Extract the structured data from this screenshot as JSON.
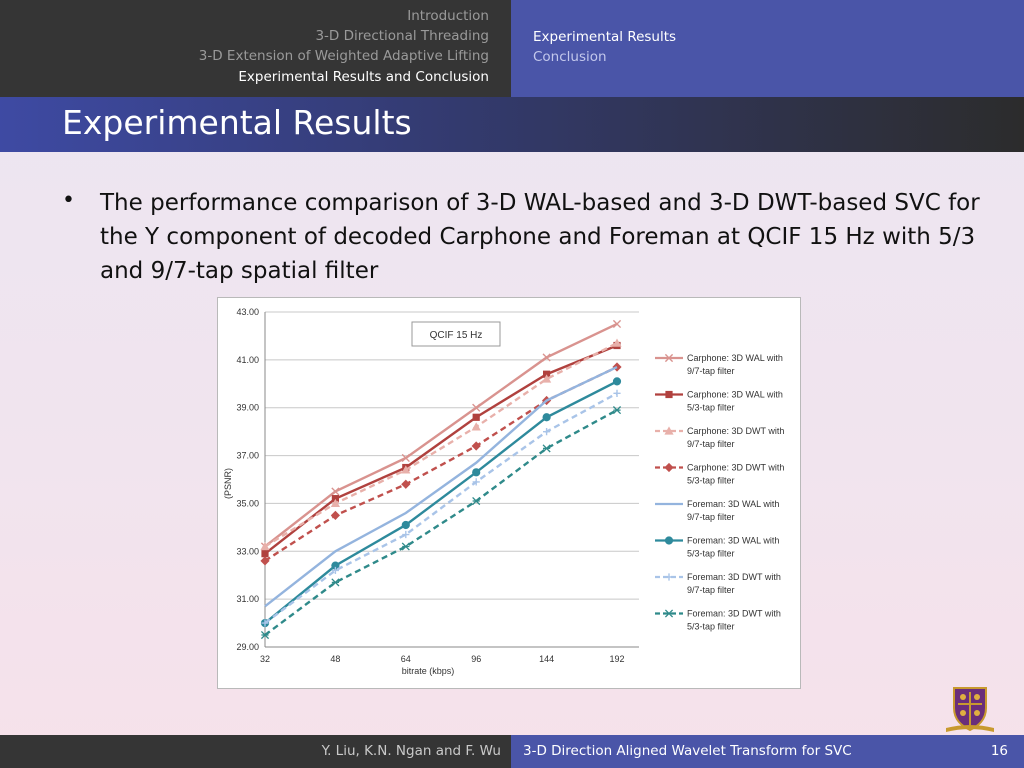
{
  "nav": {
    "sections": [
      "Introduction",
      "3-D Directional Threading",
      "3-D Extension of Weighted Adaptive Lifting",
      "Experimental Results and Conclusion"
    ],
    "subsections": [
      "Experimental Results",
      "Conclusion"
    ]
  },
  "slide": {
    "title": "Experimental Results",
    "bullet": "The performance comparison of 3-D WAL-based and 3-D DWT-based SVC for the Y component of decoded Carphone and Foreman at QCIF 15 Hz with 5/3 and 9/7-tap spatial filter"
  },
  "footer": {
    "authors": "Y. Liu, K.N. Ngan and F. Wu",
    "title": "3-D Direction Aligned Wavelet Transform for SVC",
    "page": "16"
  },
  "colors": {
    "nav_dark": "#353535",
    "nav_blue": "#4a55a8",
    "carphone_red": "#d9938f",
    "carphone_dark_red": "#b0413e",
    "foreman_light_blue": "#94b4de",
    "foreman_teal": "#2e8a9c"
  },
  "chart_data": {
    "type": "line",
    "title": "",
    "annotation": "QCIF 15 Hz",
    "xlabel": "bitrate (kbps)",
    "ylabel": "(PSNR)",
    "categories": [
      "32",
      "48",
      "64",
      "96",
      "144",
      "192"
    ],
    "ylim": [
      29.0,
      43.0
    ],
    "yticks": [
      "29.00",
      "31.00",
      "33.00",
      "35.00",
      "37.00",
      "39.00",
      "41.00",
      "43.00"
    ],
    "grid": "horizontal",
    "legend_position": "right",
    "series": [
      {
        "name": "Carphone: 3D WAL with 9/7-tap filter",
        "values": [
          33.2,
          35.5,
          36.9,
          39.0,
          41.1,
          42.5
        ],
        "color": "#d9938f",
        "dash": "solid",
        "marker": "x"
      },
      {
        "name": "Carphone: 3D WAL with 5/3-tap filter",
        "values": [
          32.9,
          35.2,
          36.5,
          38.6,
          40.4,
          41.6
        ],
        "color": "#b0413e",
        "dash": "solid",
        "marker": "square"
      },
      {
        "name": "Carphone: 3D DWT with 9/7-tap filter",
        "values": [
          33.2,
          35.0,
          36.4,
          38.2,
          40.2,
          41.7
        ],
        "color": "#e8b0aa",
        "dash": "dashed",
        "marker": "triangle"
      },
      {
        "name": "Carphone: 3D DWT with 5/3-tap filter",
        "values": [
          32.6,
          34.5,
          35.8,
          37.4,
          39.3,
          40.7
        ],
        "color": "#c0504d",
        "dash": "dashed",
        "marker": "diamond"
      },
      {
        "name": "Foreman: 3D WAL with 9/7-tap filter",
        "values": [
          30.7,
          33.0,
          34.6,
          36.7,
          39.3,
          40.7
        ],
        "color": "#94b4de",
        "dash": "solid",
        "marker": "none"
      },
      {
        "name": "Foreman: 3D WAL with 5/3-tap filter",
        "values": [
          30.0,
          32.4,
          34.1,
          36.3,
          38.6,
          40.1
        ],
        "color": "#2e8a9c",
        "dash": "solid",
        "marker": "circle"
      },
      {
        "name": "Foreman: 3D DWT with 9/7-tap filter",
        "values": [
          30.0,
          32.2,
          33.7,
          35.9,
          38.0,
          39.6
        ],
        "color": "#a9c4e8",
        "dash": "dashed",
        "marker": "plus"
      },
      {
        "name": "Foreman: 3D DWT with 5/3-tap filter",
        "values": [
          29.5,
          31.7,
          33.2,
          35.1,
          37.3,
          38.9
        ],
        "color": "#2f8a8a",
        "dash": "dashed",
        "marker": "star"
      }
    ]
  }
}
